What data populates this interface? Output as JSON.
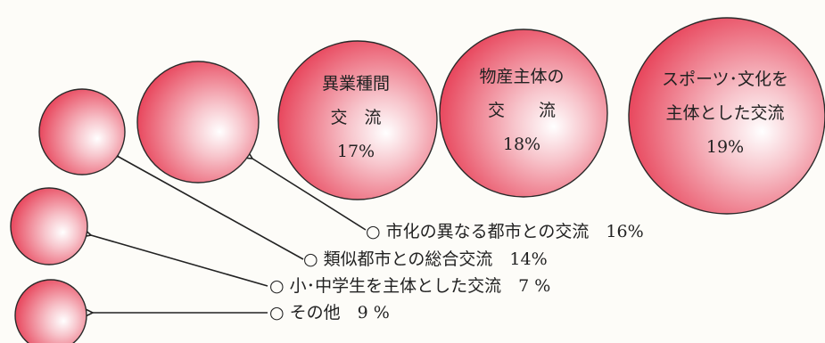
{
  "chart_data": {
    "type": "bubble",
    "unit": "%",
    "colors": {
      "bubble_center": "#ffffff",
      "bubble_edge": "#e8485e",
      "text": "#222222",
      "arrow": "#222222"
    },
    "categories": [
      {
        "name": "その他",
        "value": 9,
        "label_lines": [],
        "value_text": "9 %",
        "callout": "○ その他　9 %"
      },
      {
        "name": "小・中学生を主体とした交流",
        "value": 7,
        "label_lines": [],
        "value_text": "7 %",
        "callout": "○ 小･中学生を主体とした交流　7 %"
      },
      {
        "name": "類似都市との総合交流",
        "value": 14,
        "label_lines": [],
        "value_text": "14%",
        "callout": "○ 類似都市との総合交流　14%"
      },
      {
        "name": "市化の異なる都市との交流",
        "value": 16,
        "label_lines": [],
        "value_text": "16%",
        "callout": "○ 市化の異なる都市との交流　16%"
      },
      {
        "name": "異業種間交流",
        "value": 17,
        "label_lines": [
          "異業種間",
          "交　流"
        ],
        "value_text": "17%",
        "callout": ""
      },
      {
        "name": "物産主体の交流",
        "value": 18,
        "label_lines": [
          "物産主体の",
          "交　　流"
        ],
        "value_text": "18%",
        "callout": ""
      },
      {
        "name": "スポーツ・文化を主体とした交流",
        "value": 19,
        "label_lines": [
          "スポーツ･文化を",
          "主体とした交流"
        ],
        "value_text": "19%",
        "callout": ""
      }
    ]
  }
}
